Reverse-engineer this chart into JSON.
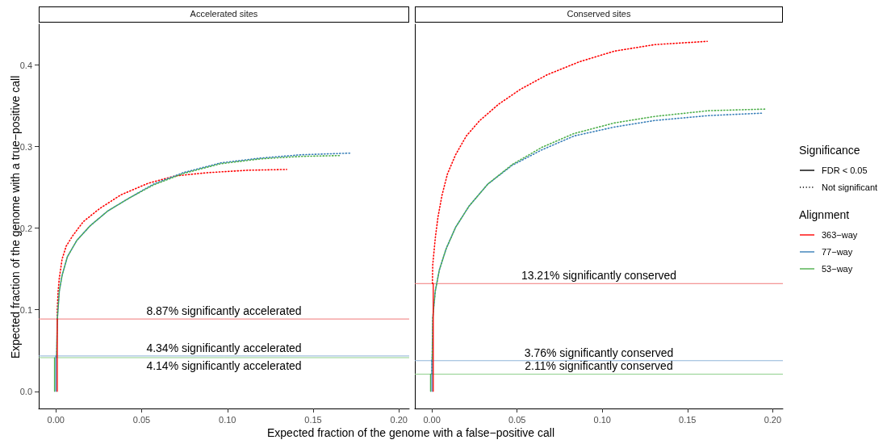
{
  "chart_data": [
    {
      "type": "line",
      "title": "Accelerated sites",
      "xlabel": "Expected fraction of the genome with a false−positive call",
      "ylabel": "Expected fraction of the genome with a true−positive call",
      "legend": "right",
      "legend_title": [
        "Significance",
        "Alignment"
      ],
      "marker": "none",
      "grid": false,
      "xlim": [
        -0.01,
        0.206
      ],
      "ylim": [
        -0.021,
        0.45
      ],
      "xticks": [
        {
          "value": 0,
          "label": "0.00"
        },
        {
          "value": 0.05,
          "label": "0.05"
        },
        {
          "value": 0.1,
          "label": "0.10"
        },
        {
          "value": 0.15,
          "label": "0.15"
        },
        {
          "value": 0.2,
          "label": "0.20"
        }
      ],
      "yticks": [
        {
          "value": 0,
          "label": "0.0"
        },
        {
          "value": 0.1,
          "label": "0.1"
        },
        {
          "value": 0.2,
          "label": "0.2"
        },
        {
          "value": 0.3,
          "label": "0.3"
        },
        {
          "value": 0.4,
          "label": "0.4"
        }
      ],
      "series": [
        {
          "name": "FDR < 0.05",
          "color": "#000000",
          "line_style": "solid"
        },
        {
          "name": "Not significant",
          "color": "#000000",
          "line_style": "dotted"
        },
        {
          "name": "363−way",
          "color": "#ff0000",
          "line_style": "dotted",
          "x": [
            0.0008,
            0.0008,
            0.0013,
            0.002,
            0.0036,
            0.006,
            0.0099,
            0.016,
            0.0255,
            0.038,
            0.0538,
            0.0695,
            0.0883,
            0.1118,
            0.1345
          ],
          "values": [
            0.0887,
            0.1,
            0.123,
            0.139,
            0.162,
            0.178,
            0.191,
            0.208,
            0.224,
            0.241,
            0.255,
            0.264,
            0.268,
            0.271,
            0.272
          ]
        },
        {
          "name": "77−way",
          "color": "#377eb8",
          "line_style": "dotted",
          "x": [
            0.0004,
            0.0006,
            0.0009,
            0.002,
            0.0036,
            0.0067,
            0.0122,
            0.02,
            0.0302,
            0.0428,
            0.0569,
            0.0742,
            0.0961,
            0.1196,
            0.1431,
            0.1714
          ],
          "values": [
            0.0434,
            0.064,
            0.09,
            0.123,
            0.142,
            0.165,
            0.185,
            0.203,
            0.221,
            0.237,
            0.254,
            0.268,
            0.28,
            0.286,
            0.29,
            0.292
          ]
        },
        {
          "name": "53−way",
          "color": "#4daf4a",
          "line_style": "dotted",
          "x": [
            0.0004,
            0.0006,
            0.0009,
            0.002,
            0.0036,
            0.0067,
            0.0122,
            0.02,
            0.0302,
            0.0428,
            0.0569,
            0.0742,
            0.0961,
            0.1196,
            0.1431,
            0.1659
          ],
          "values": [
            0.0413,
            0.064,
            0.09,
            0.123,
            0.142,
            0.165,
            0.185,
            0.203,
            0.221,
            0.237,
            0.253,
            0.267,
            0.279,
            0.285,
            0.288,
            0.289
          ]
        },
        {
          "color": "#ff0000",
          "line_style": "solid",
          "x": [
            0.0008,
            0.0008
          ],
          "values": [
            0,
            0.0887
          ]
        },
        {
          "color": "#377eb8",
          "line_style": "solid",
          "x": [
            0,
            0
          ],
          "values": [
            0,
            0.0434
          ]
        },
        {
          "color": "#4daf4a",
          "line_style": "solid",
          "x": [
            -0.0008,
            -0.0008
          ],
          "values": [
            0,
            0.0413
          ]
        }
      ],
      "ref_lines": [
        {
          "axis": "y",
          "value": 0.0887,
          "label": "8.87% significantly accelerated",
          "color": "#f07878"
        },
        {
          "axis": "y",
          "value": 0.0434,
          "label": "4.34% significantly accelerated",
          "color": "#8fb4d8"
        },
        {
          "axis": "y",
          "value": 0.0413,
          "label": "4.14% significantly accelerated",
          "color": "#90d08c"
        }
      ]
    },
    {
      "type": "line",
      "title": "Conserved sites",
      "tick_labels": "x",
      "marker": "none",
      "grid": false,
      "xlim": [
        -0.01,
        0.206
      ],
      "ylim": [
        -0.021,
        0.45
      ],
      "xticks": [
        {
          "value": 0,
          "label": "0.00"
        },
        {
          "value": 0.05,
          "label": "0.05"
        },
        {
          "value": 0.1,
          "label": "0.10"
        },
        {
          "value": 0.15,
          "label": "0.15"
        },
        {
          "value": 0.2,
          "label": "0.20"
        }
      ],
      "series": [
        {
          "color": "#ff0000",
          "line_style": "dotted",
          "x": [
            0.0003,
            0.0005,
            0.002,
            0.0036,
            0.006,
            0.0092,
            0.0139,
            0.0202,
            0.0281,
            0.0392,
            0.0518,
            0.0676,
            0.0866,
            0.1071,
            0.1308,
            0.1616
          ],
          "values": [
            0.1321,
            0.155,
            0.188,
            0.214,
            0.241,
            0.267,
            0.29,
            0.313,
            0.332,
            0.352,
            0.37,
            0.388,
            0.404,
            0.417,
            0.425,
            0.429
          ]
        },
        {
          "color": "#377eb8",
          "line_style": "dotted",
          "x": [
            0,
            0.0002,
            0.0005,
            0.002,
            0.0044,
            0.0084,
            0.0139,
            0.0218,
            0.0328,
            0.0471,
            0.0645,
            0.0834,
            0.1071,
            0.1308,
            0.1624,
            0.194
          ],
          "values": [
            0.0376,
            0.044,
            0.09,
            0.123,
            0.149,
            0.175,
            0.201,
            0.227,
            0.254,
            0.277,
            0.296,
            0.313,
            0.324,
            0.332,
            0.338,
            0.341
          ]
        },
        {
          "color": "#4daf4a",
          "line_style": "dotted",
          "x": [
            0,
            0.0002,
            0.0005,
            0.002,
            0.0044,
            0.0084,
            0.0139,
            0.0218,
            0.0328,
            0.0471,
            0.0645,
            0.0834,
            0.1071,
            0.1308,
            0.1624,
            0.1964
          ],
          "values": [
            0.0211,
            0.044,
            0.09,
            0.123,
            0.149,
            0.175,
            0.201,
            0.227,
            0.254,
            0.278,
            0.299,
            0.316,
            0.329,
            0.337,
            0.344,
            0.346
          ]
        },
        {
          "color": "#ff0000",
          "line_style": "solid",
          "x": [
            0.0008,
            0.0008
          ],
          "values": [
            0,
            0.1321
          ]
        },
        {
          "color": "#377eb8",
          "line_style": "solid",
          "x": [
            0,
            0
          ],
          "values": [
            0,
            0.0376
          ]
        },
        {
          "color": "#4daf4a",
          "line_style": "solid",
          "x": [
            -0.0008,
            -0.0008
          ],
          "values": [
            0,
            0.0211
          ]
        }
      ],
      "ref_lines": [
        {
          "axis": "y",
          "value": 0.1321,
          "label": "13.21% significantly conserved",
          "color": "#f07878"
        },
        {
          "axis": "y",
          "value": 0.0376,
          "label": "3.76% significantly conserved",
          "color": "#8fb4d8"
        },
        {
          "axis": "y",
          "value": 0.0211,
          "label": "2.11% significantly conserved",
          "color": "#90d08c"
        }
      ]
    }
  ]
}
